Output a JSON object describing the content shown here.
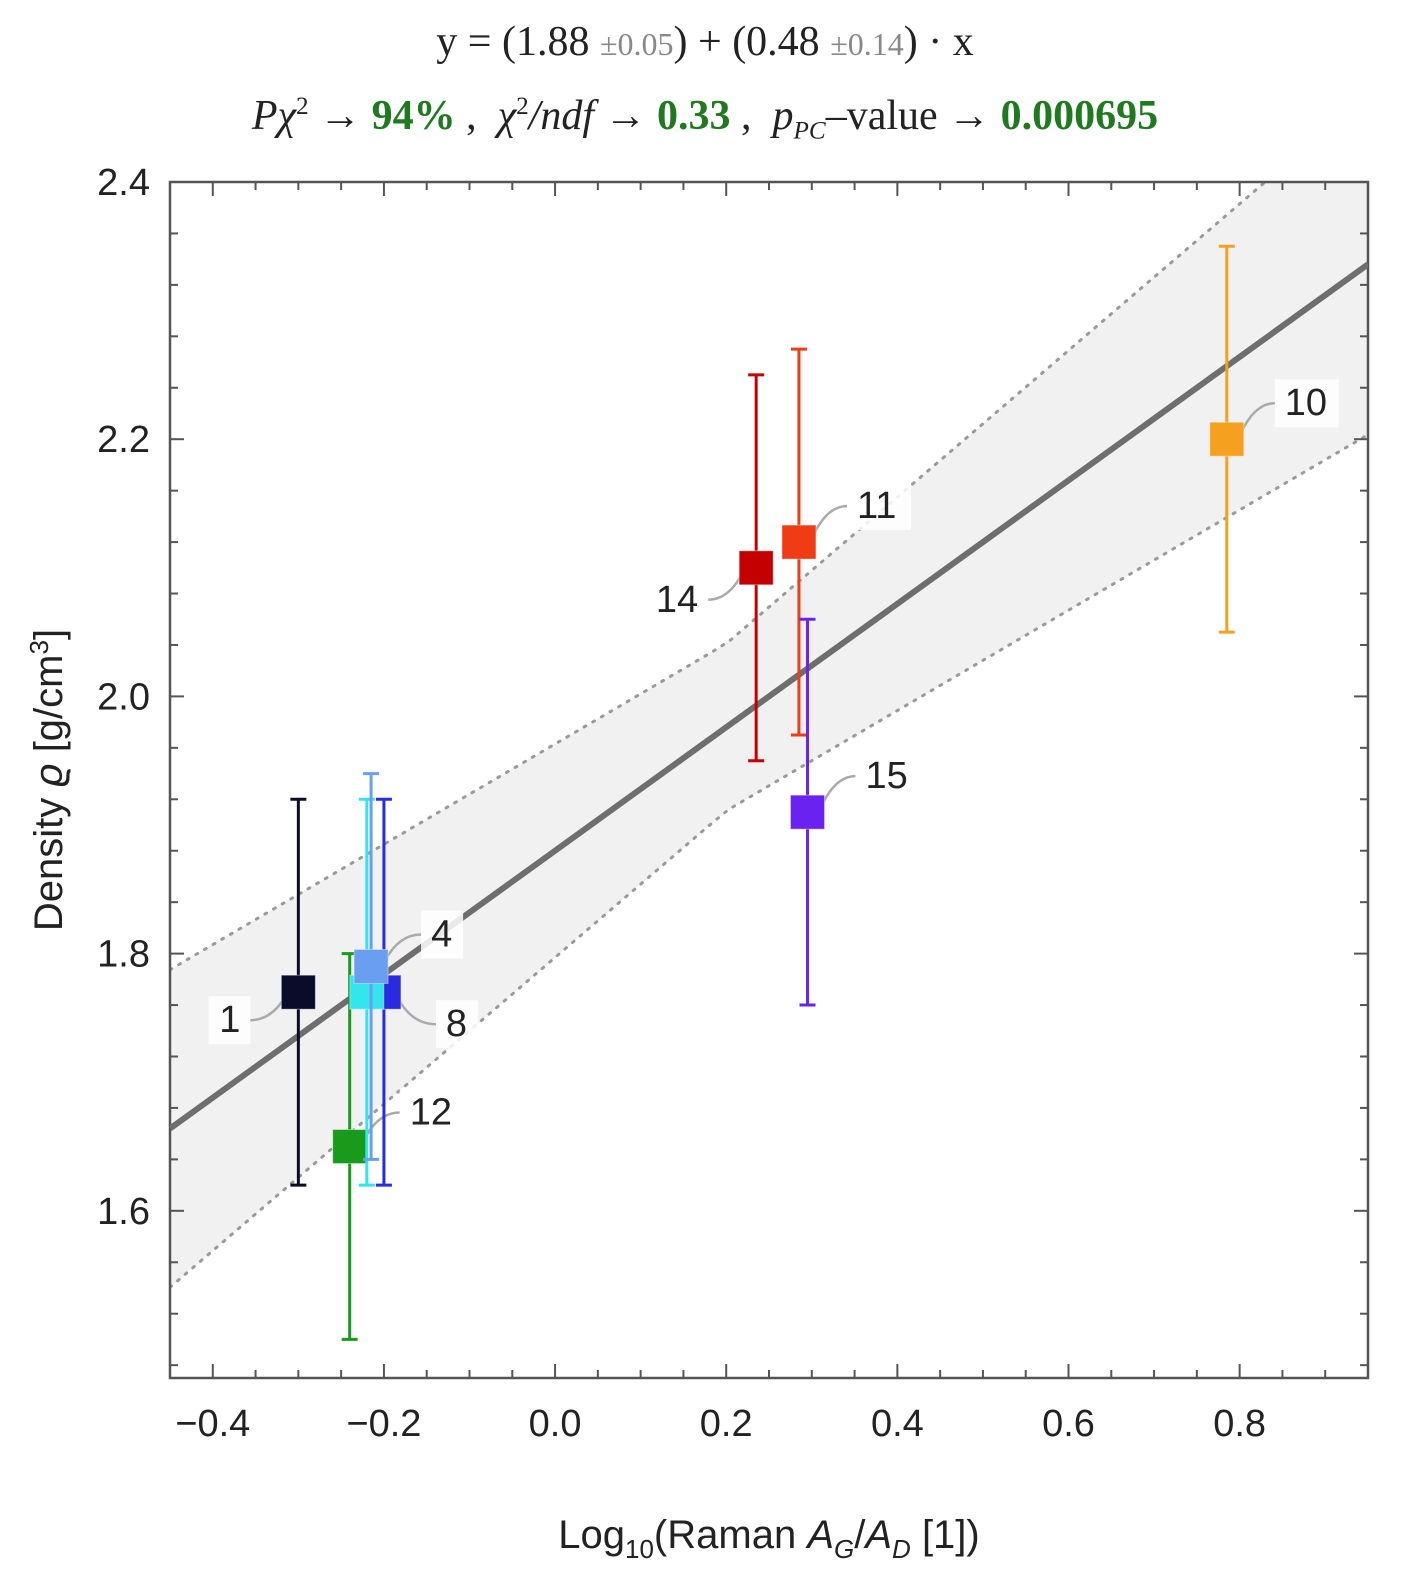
{
  "title": {
    "eq_prefix": "y = (1.88",
    "eq_err1": "±0.05",
    "eq_mid": ") + (0.48",
    "eq_err2": "±0.14",
    "eq_suffix": ") · x",
    "pchi_label": "Pχ",
    "pchi_value": "94%",
    "chindf_label": "χ",
    "chindf_value": "0.33",
    "ppc_label": "p",
    "ppc_sub": "PC",
    "ppc_text": "–value →",
    "ppc_value": "0.000695"
  },
  "chart_data": {
    "type": "scatter",
    "xlabel": "Log10(Raman AG/AD [1])",
    "ylabel": "Density ϱ [g/cm3]",
    "xlim": [
      -0.45,
      0.95
    ],
    "ylim": [
      1.47,
      2.4
    ],
    "x_ticks": [
      -0.4,
      -0.2,
      0.0,
      0.2,
      0.4,
      0.6,
      0.8
    ],
    "x_tick_labels": [
      "−0.4",
      "−0.2",
      "0.0",
      "0.2",
      "0.4",
      "0.6",
      "0.8"
    ],
    "y_ticks": [
      1.6,
      1.8,
      2.0,
      2.2,
      2.4
    ],
    "y_tick_labels": [
      "1.6",
      "1.8",
      "2.0",
      "2.2",
      "2.4"
    ],
    "fit": {
      "intercept": 1.88,
      "intercept_err": 0.05,
      "slope": 0.48,
      "slope_err": 0.14,
      "band_halfwidth_at_0": 0.045,
      "band_slope_growth": 0.1
    },
    "series": [
      {
        "name": "1",
        "x": -0.3,
        "y": 1.77,
        "yerr_low": 1.62,
        "yerr_high": 1.92,
        "color": "#0b0b2a"
      },
      {
        "name": "12",
        "x": -0.24,
        "y": 1.65,
        "yerr_low": 1.5,
        "yerr_high": 1.8,
        "color": "#1a9a1a"
      },
      {
        "name": "8",
        "x": -0.2,
        "y": 1.77,
        "yerr_low": 1.62,
        "yerr_high": 1.92,
        "color": "#2a2ae0"
      },
      {
        "name": "cyan",
        "x": -0.22,
        "y": 1.77,
        "yerr_low": 1.62,
        "yerr_high": 1.92,
        "color": "#33e6ee"
      },
      {
        "name": "4",
        "x": -0.215,
        "y": 1.79,
        "yerr_low": 1.64,
        "yerr_high": 1.94,
        "color": "#6a9ef0"
      },
      {
        "name": "14",
        "x": 0.235,
        "y": 2.1,
        "yerr_low": 1.95,
        "yerr_high": 2.25,
        "color": "#c40000"
      },
      {
        "name": "11",
        "x": 0.285,
        "y": 2.12,
        "yerr_low": 1.97,
        "yerr_high": 2.27,
        "color": "#f03c14"
      },
      {
        "name": "15",
        "x": 0.295,
        "y": 1.91,
        "yerr_low": 1.76,
        "yerr_high": 2.06,
        "color": "#6a22f0"
      },
      {
        "name": "10",
        "x": 0.785,
        "y": 2.2,
        "yerr_low": 2.05,
        "yerr_high": 2.35,
        "color": "#f5a01e"
      }
    ],
    "point_labels": [
      "1",
      "4",
      "8",
      "12",
      "14",
      "11",
      "15",
      "10"
    ]
  }
}
